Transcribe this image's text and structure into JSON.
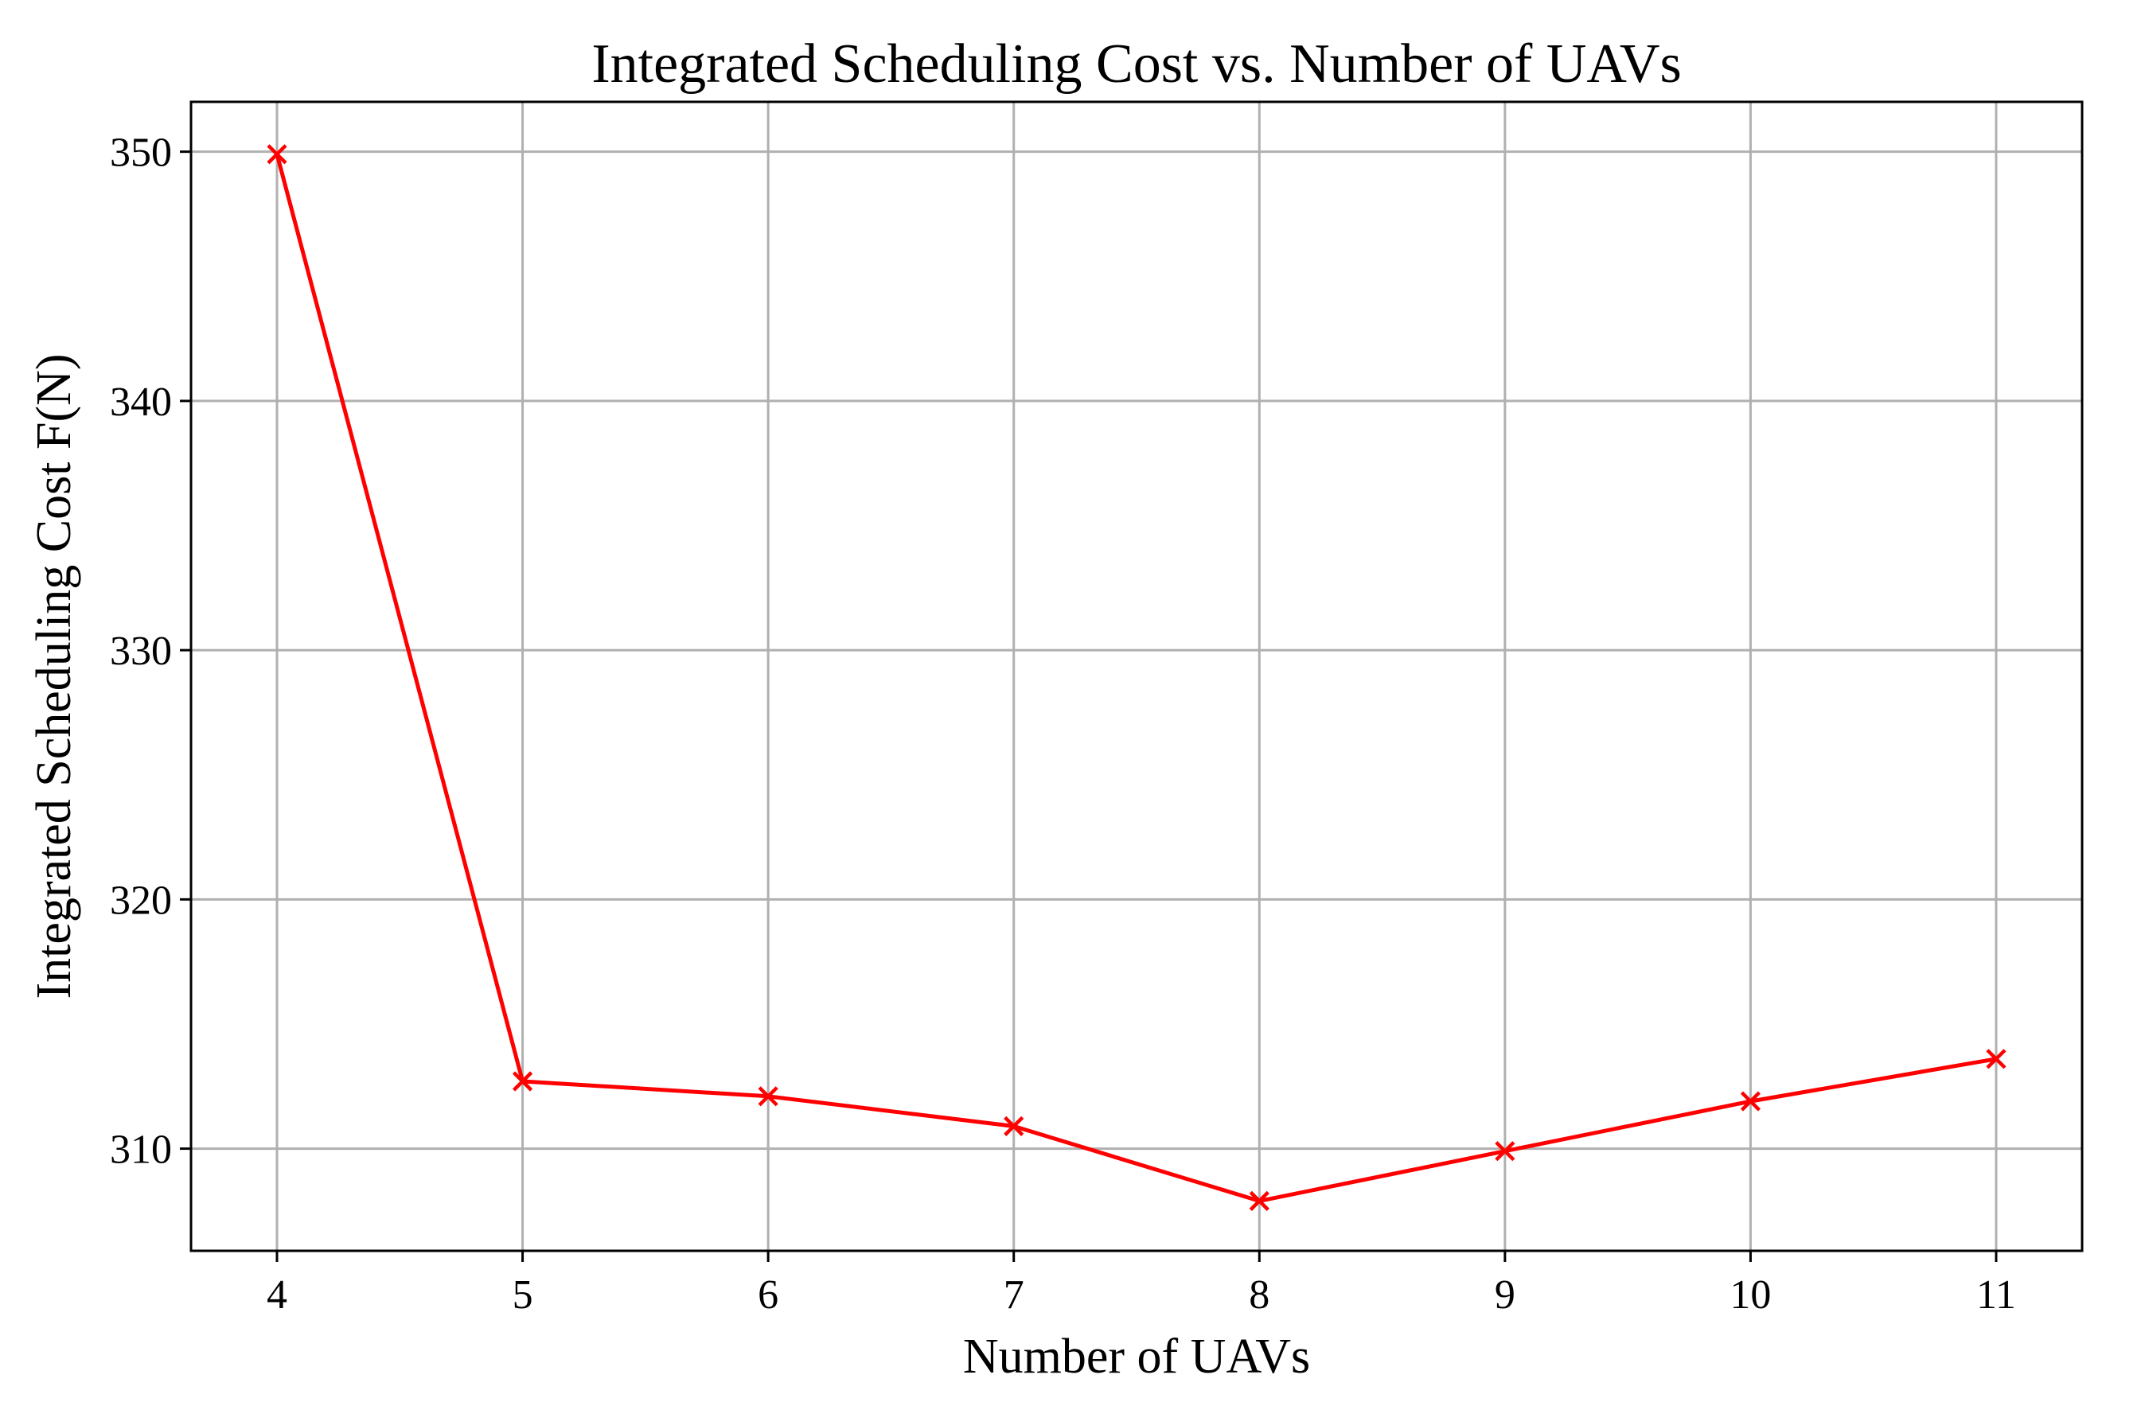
{
  "chart_data": {
    "type": "line",
    "title": "Integrated Scheduling Cost vs. Number of UAVs",
    "xlabel": "Number of UAVs",
    "ylabel": "Integrated Scheduling Cost F(N)",
    "x": [
      4,
      5,
      6,
      7,
      8,
      9,
      10,
      11
    ],
    "series": [
      {
        "values": [
          349.9,
          312.7,
          312.1,
          310.9,
          307.9,
          309.9,
          311.9,
          313.6
        ],
        "color": "#ff0000",
        "marker": "x"
      }
    ],
    "xticks": [
      "4",
      "5",
      "6",
      "7",
      "8",
      "9",
      "10",
      "11"
    ],
    "yticks": [
      "310",
      "320",
      "330",
      "340",
      "350"
    ],
    "xlim": [
      3.65,
      11.35
    ],
    "ylim": [
      305.9,
      352.0
    ],
    "grid": true
  }
}
